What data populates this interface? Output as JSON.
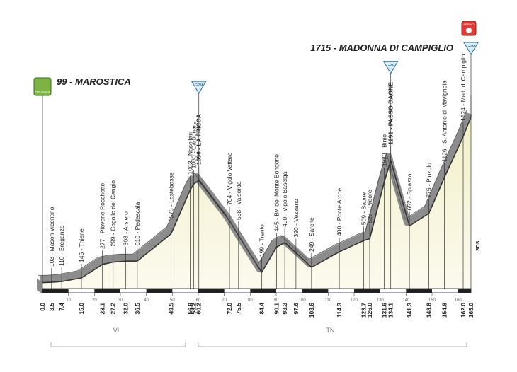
{
  "chart_data": {
    "type": "area",
    "x": [
      0.0,
      3.5,
      7.4,
      15.0,
      23.1,
      27.2,
      32.0,
      36.5,
      49.5,
      56.9,
      58.2,
      60.2,
      72.0,
      75.5,
      84.4,
      90.1,
      93.3,
      97.6,
      103.6,
      114.3,
      123.7,
      126.0,
      131.6,
      134.1,
      141.3,
      148.8,
      154.8,
      162.0,
      165.0
    ],
    "x_labels": [
      "0.0",
      "3.5",
      "7.4",
      "15.0",
      "23.1",
      "27.2",
      "32.0",
      "36.5",
      "49.5",
      "56.9",
      "58.2",
      "60.2",
      "72.0",
      "75.5",
      "84.4",
      "90.1",
      "93.3",
      "97.6",
      "103.6",
      "114.3",
      "123.7",
      "126.0",
      "131.6",
      "134.1",
      "141.3",
      "148.8",
      "154.8",
      "162.0",
      "165.0"
    ],
    "values": [
      99,
      103,
      110,
      145,
      277,
      299,
      308,
      310,
      575,
      1003,
      1060,
      1096,
      704,
      558,
      199,
      445,
      490,
      390,
      249,
      400,
      509,
      527,
      1080,
      1291,
      652,
      775,
      1126,
      1524,
      1715
    ],
    "labels": [
      "99 - MAROSTICA",
      "103 - Mason Vicentino",
      "110 - Breganze",
      "145 - Thiene",
      "277 - Piovene Rocchette",
      "299 - Cogollo del Cengio",
      "308 - Arsiero",
      "310 - Pedescala",
      "575 - Lastebasse",
      "1003 - Nosellari",
      "1060 - Carbonare",
      "1096 - LA FRICCA",
      "704 - Vigolo Vattaro",
      "558 - Valsorda",
      "199 - Trento",
      "445 - Bv. del Monte Bondone",
      "490 - Vigolo Baselga",
      "390 - Vezzano",
      "249 - Sarche",
      "400 - Ponte Arche",
      "509 - Saone",
      "527 - Preore",
      "1080 - Binio",
      "1291 - PASSO DAONE",
      "652 - Spiazzo",
      "775 - Pinzolo",
      "1126 - S. Antonio di Mavignola",
      "1524 - Mad. di Campiglio",
      "1715 - MADONNA DI CAMPIGLIO"
    ],
    "xlim": [
      0,
      165
    ],
    "xticks": [
      10,
      20,
      30,
      40,
      50,
      60,
      70,
      80,
      90,
      100,
      110,
      120,
      130,
      140,
      150,
      160
    ],
    "ylim": [
      0,
      2000
    ],
    "climb_markers": {
      "label": "GPM",
      "x": [
        60.2,
        134.1,
        165.0
      ]
    },
    "start_badge": "PARTENZA",
    "finish_badge": "ARRIVO",
    "finish_note": "SDS",
    "regions": [
      {
        "name": "VI",
        "from": 0,
        "to": 56.7
      },
      {
        "name": "TN",
        "from": 56.7,
        "to": 165
      }
    ]
  }
}
